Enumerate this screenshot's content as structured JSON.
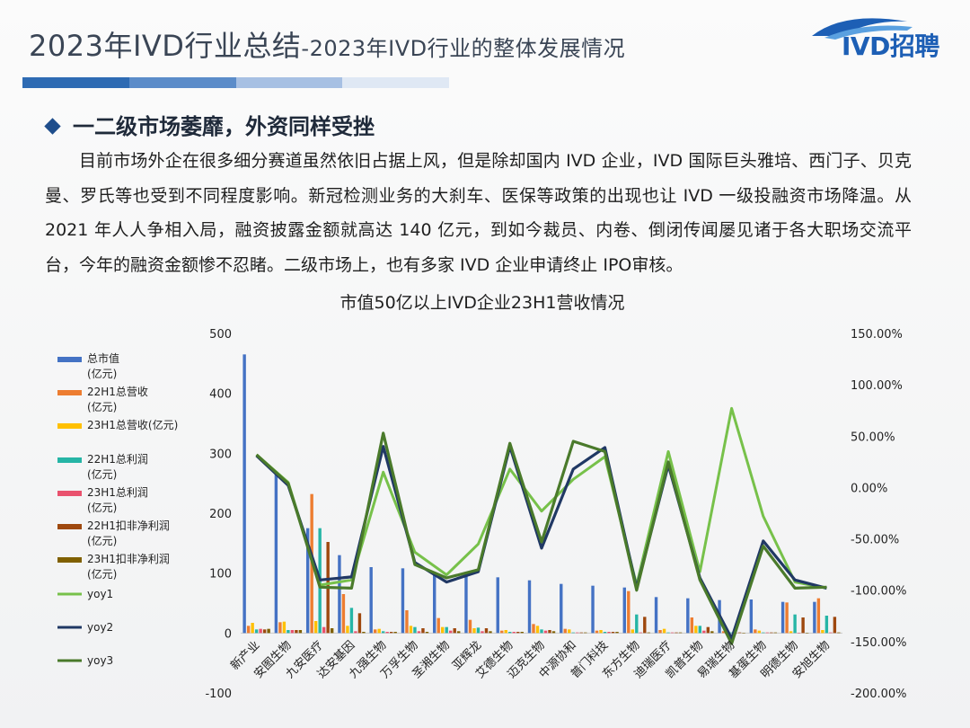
{
  "header": {
    "title_main": "2023年IVD行业总结",
    "title_sub": "-2023年IVD行业的整体发展情况",
    "logo_text": "IVD招聘",
    "bar_colors": [
      "#2e6bb3",
      "#5b8cc9",
      "#a7c0e3",
      "#dfe8f4"
    ]
  },
  "section": {
    "heading": "一二级市场萎靡，外资同样受挫"
  },
  "paragraph": "目前市场外企在很多细分赛道虽然依旧占据上风，但是除却国内 IVD 企业，IVD 国际巨头雅培、西门子、贝克曼、罗氏等也受到不同程度影响。新冠检测业务的大刹车、医保等政策的出现也让 IVD 一级投融资市场降温。从 2021 年人人争相入局，融资披露金额就高达 140 亿元，到如今裁员、内卷、倒闭传闻屡见诸于各大职场交流平台，今年的融资金额惨不忍睹。二级市场上，也有多家 IVD 企业申请终止 IPO审核。",
  "chart_data": {
    "type": "bar",
    "title": "市值50亿以上IVD企业23H1营收情况",
    "categories": [
      "新产业",
      "安图生物",
      "九安医疗",
      "达安基因",
      "九强生物",
      "万孚生物",
      "圣湘生物",
      "亚辉龙",
      "艾德生物",
      "迈克生物",
      "中源协和",
      "普门科技",
      "东方生物",
      "迪瑞医疗",
      "凯普生物",
      "易瑞生物",
      "基蛋生物",
      "明德生物",
      "安旭生物"
    ],
    "y_left": {
      "lim": [
        -100,
        500
      ],
      "ticks": [
        "500",
        "400",
        "300",
        "200",
        "100",
        "0",
        "-100"
      ]
    },
    "y_right": {
      "lim": [
        -200,
        150
      ],
      "ticks": [
        "150.00%",
        "100.00%",
        "50.00%",
        "0.00%",
        "-50.00%",
        "-100.00%",
        "-150.00%",
        "-200.00%"
      ]
    },
    "bar_series": [
      {
        "name": "总市值\n(亿元)",
        "color": "#4472c4",
        "values": [
          465,
          270,
          175,
          130,
          110,
          108,
          100,
          100,
          93,
          88,
          82,
          79,
          76,
          60,
          58,
          55,
          56,
          52,
          52
        ]
      },
      {
        "name": "22H1总营收\n(亿元)",
        "color": "#ed7d31",
        "values": [
          12,
          18,
          232,
          65,
          6,
          38,
          25,
          22,
          4,
          15,
          7,
          4,
          70,
          5,
          26,
          3,
          6,
          51,
          58
        ]
      },
      {
        "name": "23H1总营收(亿元)",
        "color": "#ffc000",
        "values": [
          17,
          19,
          20,
          12,
          7,
          12,
          10,
          8,
          5,
          12,
          6,
          5,
          6,
          7,
          12,
          3,
          4,
          3,
          5
        ]
      },
      {
        "name": "22H1总利润\n(亿元)",
        "color": "#26b5a6",
        "values": [
          6,
          5,
          175,
          42,
          3,
          10,
          10,
          9,
          2,
          6,
          1,
          2,
          31,
          1,
          12,
          1,
          1,
          31,
          29
        ]
      },
      {
        "name": "23H1总利润\n(亿元)",
        "color": "#e9526e",
        "values": [
          7,
          5,
          10,
          3,
          2,
          3,
          4,
          3,
          2,
          4,
          1,
          2,
          1,
          1,
          4,
          0,
          1,
          0,
          1
        ]
      },
      {
        "name": "22H1扣非净利润\n(亿元)",
        "color": "#9e480e",
        "values": [
          6,
          5,
          152,
          33,
          2,
          8,
          8,
          8,
          2,
          5,
          1,
          2,
          27,
          1,
          10,
          1,
          1,
          26,
          27
        ]
      },
      {
        "name": "23H1扣非净利润\n(亿元)",
        "color": "#806000",
        "values": [
          7,
          5,
          8,
          2,
          2,
          2,
          3,
          3,
          2,
          3,
          1,
          2,
          1,
          1,
          3,
          0,
          1,
          0,
          1
        ]
      }
    ],
    "line_series": [
      {
        "name": "yoy1",
        "color": "#77c14a",
        "values": [
          32,
          5,
          -95,
          -90,
          15,
          -63,
          -85,
          -55,
          18,
          -23,
          8,
          30,
          -95,
          35,
          -82,
          77,
          -28,
          -92,
          -98
        ]
      },
      {
        "name": "yoy2",
        "color": "#203864",
        "values": [
          31,
          2,
          -90,
          -87,
          40,
          -73,
          -92,
          -82,
          40,
          -59,
          18,
          39,
          -98,
          22,
          -88,
          -147,
          -52,
          -90,
          -98
        ]
      },
      {
        "name": "yoy3",
        "color": "#4a7a2b",
        "values": [
          32,
          4,
          -97,
          -98,
          53,
          -75,
          -88,
          -80,
          43,
          -53,
          45,
          35,
          -100,
          25,
          -90,
          -152,
          -57,
          -98,
          -97
        ]
      }
    ],
    "legend_position": "left",
    "grid": false
  }
}
